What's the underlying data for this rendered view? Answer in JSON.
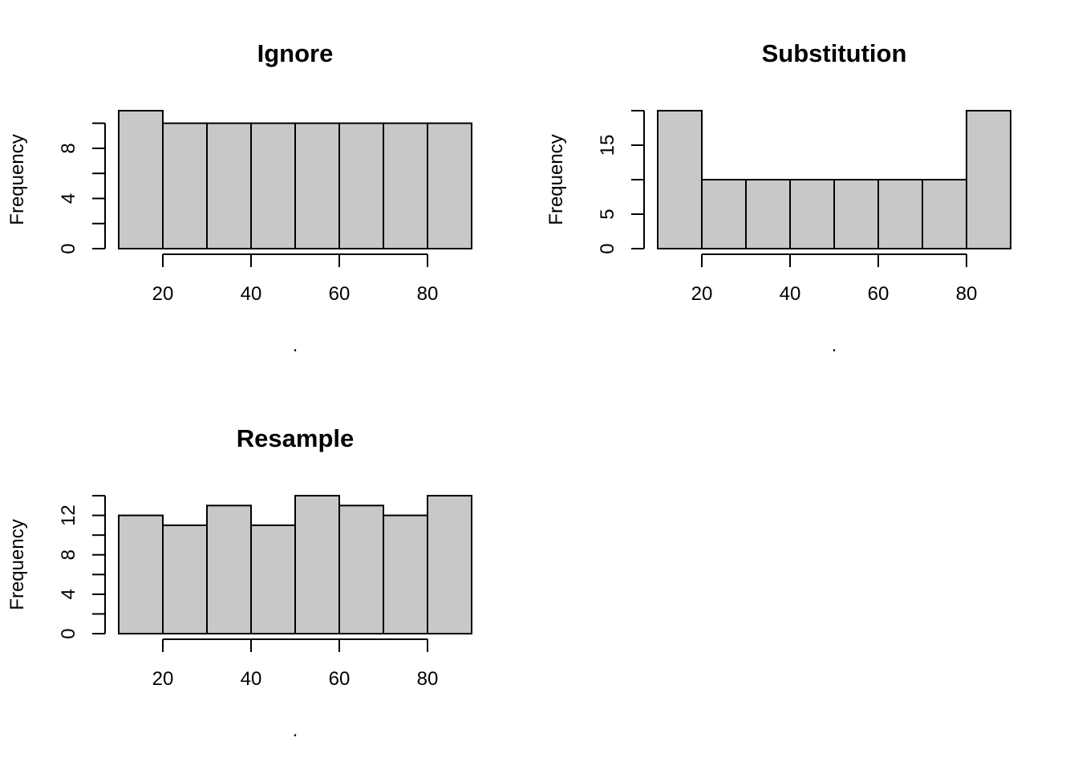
{
  "colors": {
    "bar_fill": "#c8c8c8",
    "stroke": "#000000",
    "background": "#ffffff"
  },
  "chart_data": [
    {
      "type": "bar",
      "title": "Ignore",
      "xlabel": ".",
      "ylabel": "Frequency",
      "bins": [
        [
          10,
          20
        ],
        [
          20,
          30
        ],
        [
          30,
          40
        ],
        [
          40,
          50
        ],
        [
          50,
          60
        ],
        [
          60,
          70
        ],
        [
          70,
          80
        ],
        [
          80,
          90
        ]
      ],
      "values": [
        11,
        10,
        10,
        10,
        10,
        10,
        10,
        10
      ],
      "xticks": [
        20,
        40,
        60,
        80
      ],
      "yticks": [
        0,
        2,
        4,
        6,
        8,
        10
      ],
      "ytick_labels": [
        "0",
        "",
        "4",
        "",
        "8",
        ""
      ],
      "xlim": [
        10,
        90
      ],
      "ylim": [
        0,
        11
      ]
    },
    {
      "type": "bar",
      "title": "Substitution",
      "xlabel": ".",
      "ylabel": "Frequency",
      "bins": [
        [
          10,
          20
        ],
        [
          20,
          30
        ],
        [
          30,
          40
        ],
        [
          40,
          50
        ],
        [
          50,
          60
        ],
        [
          60,
          70
        ],
        [
          70,
          80
        ],
        [
          80,
          90
        ]
      ],
      "values": [
        20,
        10,
        10,
        10,
        10,
        10,
        10,
        20
      ],
      "xticks": [
        20,
        40,
        60,
        80
      ],
      "yticks": [
        0,
        5,
        10,
        15,
        20
      ],
      "ytick_labels": [
        "0",
        "5",
        "",
        "15",
        ""
      ],
      "xlim": [
        10,
        90
      ],
      "ylim": [
        0,
        20
      ]
    },
    {
      "type": "bar",
      "title": "Resample",
      "xlabel": ".",
      "ylabel": "Frequency",
      "bins": [
        [
          10,
          20
        ],
        [
          20,
          30
        ],
        [
          30,
          40
        ],
        [
          40,
          50
        ],
        [
          50,
          60
        ],
        [
          60,
          70
        ],
        [
          70,
          80
        ],
        [
          80,
          90
        ]
      ],
      "values": [
        12,
        11,
        13,
        11,
        14,
        13,
        12,
        14
      ],
      "xticks": [
        20,
        40,
        60,
        80
      ],
      "yticks": [
        0,
        2,
        4,
        6,
        8,
        10,
        12,
        14
      ],
      "ytick_labels": [
        "0",
        "",
        "4",
        "",
        "8",
        "",
        "12",
        ""
      ],
      "xlim": [
        10,
        90
      ],
      "ylim": [
        0,
        14
      ]
    }
  ]
}
